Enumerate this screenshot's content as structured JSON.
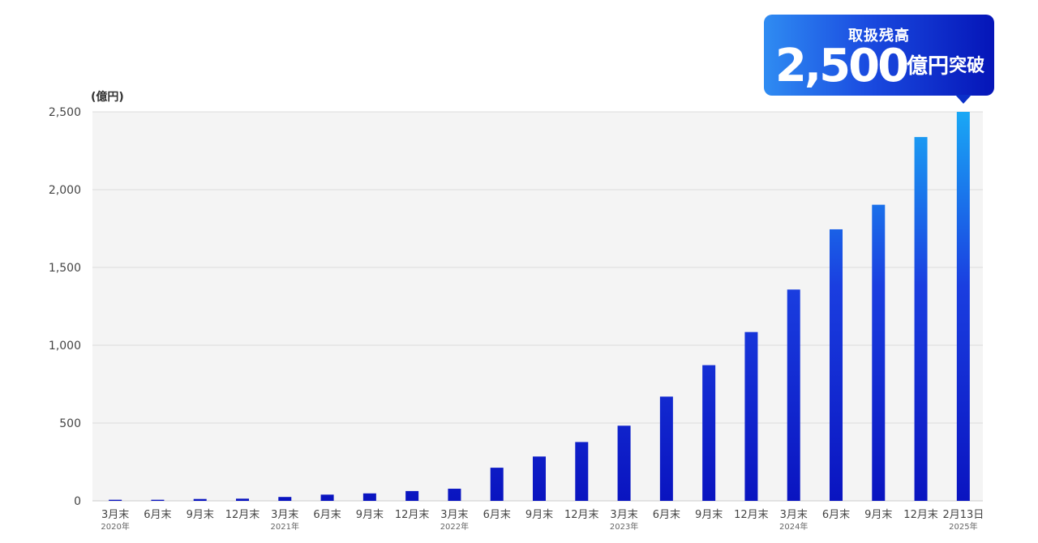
{
  "chart_data": {
    "type": "bar",
    "ylabel": "(億円)",
    "ylim": [
      0,
      2500
    ],
    "yticks": [
      0,
      500,
      1000,
      1500,
      2000,
      2500
    ],
    "ytick_labels": [
      "0",
      "500",
      "1,000",
      "1,500",
      "2,000",
      "2,500"
    ],
    "grid": true,
    "categories": [
      "3月末",
      "6月末",
      "9月末",
      "12月末",
      "3月末",
      "6月末",
      "9月末",
      "12月末",
      "3月末",
      "6月末",
      "9月末",
      "12月末",
      "3月末",
      "6月末",
      "9月末",
      "12月末",
      "3月末",
      "6月末",
      "9月末",
      "12月末",
      "2月13日"
    ],
    "year_labels": [
      "2020年",
      "",
      "",
      "",
      "2021年",
      "",
      "",
      "",
      "2022年",
      "",
      "",
      "",
      "2023年",
      "",
      "",
      "",
      "2024年",
      "",
      "",
      "",
      "2025年"
    ],
    "values": [
      7,
      7,
      12,
      14,
      25,
      40,
      48,
      63,
      78,
      213,
      285,
      378,
      483,
      670,
      872,
      1085,
      1358,
      1745,
      1903,
      2338,
      2500
    ],
    "colors": {
      "bar_bottom": "#0a14c0",
      "bar_top": "#1aa8f5",
      "plot_bg": "#f4f4f4",
      "grid": "#dddddd",
      "axis_text": "#444444",
      "callout_left": "#2f8cf2",
      "callout_right": "#0515b8"
    }
  },
  "callout": {
    "label": "取扱残高",
    "number": "2,500",
    "unit": "億円",
    "suffix": "突破"
  }
}
